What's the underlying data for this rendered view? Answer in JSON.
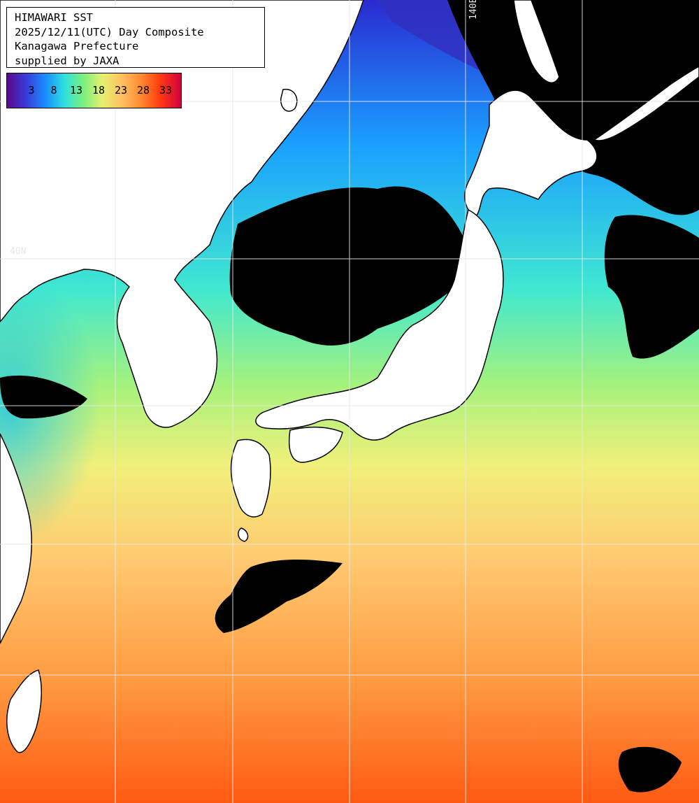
{
  "header": {
    "line1": "HIMAWARI SST",
    "line2": "2025/12/11(UTC) Day Composite",
    "line3": "Kanagawa Prefecture",
    "line4": "supplied by JAXA"
  },
  "colorbar": {
    "ticks": [
      "3",
      "8",
      "13",
      "18",
      "23",
      "28",
      "33"
    ],
    "colors": [
      "#5a0a8c",
      "#3a3ad8",
      "#1a8cff",
      "#2ee0e0",
      "#7cf07c",
      "#e8f070",
      "#ffc060",
      "#ff8a30",
      "#ff3a10",
      "#d00040"
    ]
  },
  "grid_labels": {
    "lat": "40N",
    "lon": "140E"
  },
  "colors": {
    "land": "#ffffff",
    "cloud": "#000000",
    "grid": "#e0e0e0"
  }
}
